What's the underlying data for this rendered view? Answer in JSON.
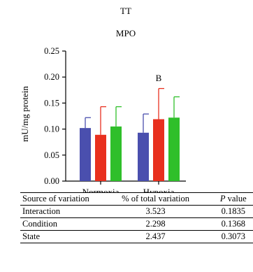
{
  "colors": {
    "series_1": "#4a4fae",
    "series_2": "#e8301f",
    "series_3": "#2fbf2a",
    "axis": "#000000"
  },
  "chart_data": {
    "type": "bar",
    "title": "TT",
    "subtitle": "MPO",
    "ylabel": "mU/mg protein",
    "xlabel": "",
    "ylim": [
      0,
      0.25
    ],
    "yticks": [
      "0.00",
      "0.05",
      "0.10",
      "0.15",
      "0.20",
      "0.25"
    ],
    "grid": false,
    "legend": "none",
    "categories": [
      "Normoxia",
      "Hypoxia"
    ],
    "series": [
      {
        "values": [
          0.102,
          0.093
        ],
        "errors": [
          0.02,
          0.036
        ]
      },
      {
        "values": [
          0.089,
          0.119
        ],
        "errors": [
          0.054,
          0.059
        ]
      },
      {
        "values": [
          0.105,
          0.122
        ],
        "errors": [
          0.038,
          0.04
        ]
      }
    ],
    "annotations": [
      {
        "text": "B",
        "category": "Hypoxia",
        "y": 0.192
      }
    ]
  },
  "table": {
    "headers": {
      "source": "Source of variation",
      "pct": "% of total variation",
      "p_label": "P",
      "p_suffix": " value"
    },
    "rows": [
      {
        "source": "Interaction",
        "pct": "3.523",
        "p": "0.1835"
      },
      {
        "source": "Condition",
        "pct": "2.298",
        "p": "0.1368"
      },
      {
        "source": "State",
        "pct": "2.437",
        "p": "0.3073"
      }
    ]
  }
}
